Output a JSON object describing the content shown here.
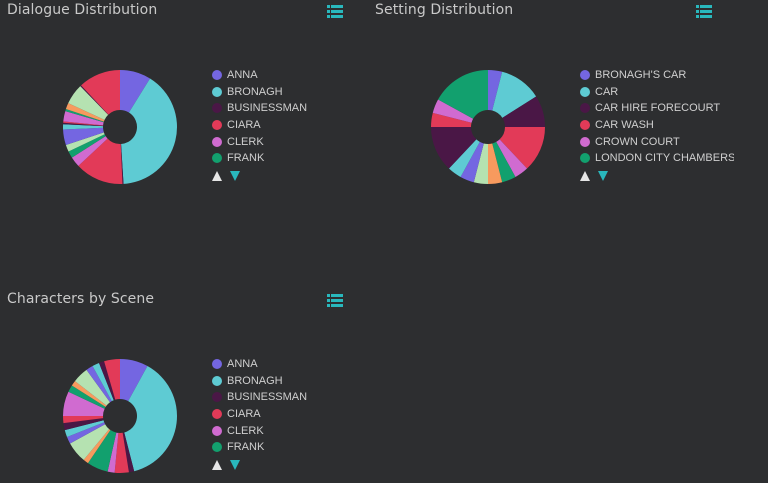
{
  "colors": {
    "background": "#2d2e30",
    "accent": "#29b8bd",
    "title": "#c9c9c9",
    "legend_text": "#cfcfcf",
    "nav_up": "#e6e6e6",
    "nav_down": "#29b8bd"
  },
  "palette": [
    "#7466e1",
    "#5ecbd3",
    "#4a1746",
    "#e23a58",
    "#d06bd0",
    "#12a06e",
    "#f79a5e",
    "#b5e2b1"
  ],
  "panels": [
    {
      "title": "Dialogue Distribution",
      "menu_icon": "list-menu-icon",
      "legend": [
        "ANNA",
        "BRONAGH",
        "BUSINESSMAN",
        "CIARA",
        "CLERK",
        "FRANK"
      ],
      "nav": {
        "up": "legend-prev",
        "down": "legend-next"
      }
    },
    {
      "title": "Setting Distribution",
      "menu_icon": "list-menu-icon",
      "legend": [
        "BRONAGH'S CAR",
        "CAR",
        "CAR HIRE FORECOURT",
        "CAR WASH",
        "CROWN COURT",
        "LONDON CITY CHAMBERS"
      ],
      "nav": {
        "up": "legend-prev",
        "down": "legend-next"
      }
    },
    {
      "title": "Characters by Scene",
      "menu_icon": "list-menu-icon",
      "legend": [
        "ANNA",
        "BRONAGH",
        "BUSINESSMAN",
        "CIARA",
        "CLERK",
        "FRANK"
      ],
      "nav": {
        "up": "legend-prev",
        "down": "legend-next"
      }
    }
  ],
  "chart_data": [
    {
      "type": "pie",
      "title": "Dialogue Distribution",
      "donut": true,
      "legend_position": "right",
      "legend_visible": [
        "ANNA",
        "BRONAGH",
        "BUSINESSMAN",
        "CIARA",
        "CLERK",
        "FRANK"
      ],
      "slices": [
        {
          "label": "ANNA",
          "value": 9,
          "color": "#7466e1"
        },
        {
          "label": "BRONAGH",
          "value": 41,
          "color": "#5ecbd3"
        },
        {
          "label": "BUSINESSMAN",
          "value": 0.3,
          "color": "#4a1746"
        },
        {
          "label": "CIARA",
          "value": 14,
          "color": "#e23a58"
        },
        {
          "label": "CLERK",
          "value": 3,
          "color": "#d06bd0"
        },
        {
          "label": "FRANK",
          "value": 2,
          "color": "#12a06e"
        },
        {
          "label": "(unlabeled 7)",
          "value": 2,
          "color": "#b5e2b1"
        },
        {
          "label": "(unlabeled 8)",
          "value": 4.5,
          "color": "#7466e1"
        },
        {
          "label": "(unlabeled 9)",
          "value": 1.5,
          "color": "#5ecbd3"
        },
        {
          "label": "(unlabeled 10)",
          "value": 0.4,
          "color": "#4a1746"
        },
        {
          "label": "(unlabeled 11)",
          "value": 0.4,
          "color": "#e23a58"
        },
        {
          "label": "(unlabeled 12)",
          "value": 3,
          "color": "#d06bd0"
        },
        {
          "label": "(unlabeled 13)",
          "value": 0.6,
          "color": "#12a06e"
        },
        {
          "label": "(unlabeled 14)",
          "value": 1.8,
          "color": "#f79a5e"
        },
        {
          "label": "(unlabeled 15)",
          "value": 6,
          "color": "#b5e2b1"
        },
        {
          "label": "(unlabeled 16)",
          "value": 0.3,
          "color": "#4a1746"
        },
        {
          "label": "(unlabeled 17)",
          "value": 12.2,
          "color": "#e23a58"
        }
      ]
    },
    {
      "type": "pie",
      "title": "Setting Distribution",
      "donut": true,
      "legend_position": "right",
      "legend_visible": [
        "BRONAGH'S CAR",
        "CAR",
        "CAR HIRE FORECOURT",
        "CAR WASH",
        "CROWN COURT",
        "LONDON CITY CHAMBERS"
      ],
      "slices": [
        {
          "label": "BRONAGH'S CAR",
          "value": 4,
          "color": "#7466e1"
        },
        {
          "label": "CAR",
          "value": 12,
          "color": "#5ecbd3"
        },
        {
          "label": "CAR HIRE FORECOURT",
          "value": 9,
          "color": "#4a1746"
        },
        {
          "label": "CAR WASH",
          "value": 13,
          "color": "#e23a58"
        },
        {
          "label": "CROWN COURT",
          "value": 4,
          "color": "#d06bd0"
        },
        {
          "label": "LONDON CITY CHAMBERS",
          "value": 4,
          "color": "#12a06e"
        },
        {
          "label": "(unlabeled 7)",
          "value": 4,
          "color": "#f79a5e"
        },
        {
          "label": "(unlabeled 8)",
          "value": 4,
          "color": "#b5e2b1"
        },
        {
          "label": "(unlabeled 9)",
          "value": 4,
          "color": "#7466e1"
        },
        {
          "label": "(unlabeled 10)",
          "value": 4,
          "color": "#5ecbd3"
        },
        {
          "label": "(unlabeled 11)",
          "value": 13,
          "color": "#4a1746"
        },
        {
          "label": "(unlabeled 12)",
          "value": 4,
          "color": "#e23a58"
        },
        {
          "label": "(unlabeled 13)",
          "value": 4,
          "color": "#d06bd0"
        },
        {
          "label": "(unlabeled 14)",
          "value": 17,
          "color": "#12a06e"
        }
      ]
    },
    {
      "type": "pie",
      "title": "Characters by Scene",
      "donut": true,
      "legend_position": "right",
      "legend_visible": [
        "ANNA",
        "BRONAGH",
        "BUSINESSMAN",
        "CIARA",
        "CLERK",
        "FRANK"
      ],
      "slices": [
        {
          "label": "ANNA",
          "value": 8,
          "color": "#7466e1"
        },
        {
          "label": "BRONAGH",
          "value": 38,
          "color": "#5ecbd3"
        },
        {
          "label": "BUSINESSMAN",
          "value": 1.5,
          "color": "#4a1746"
        },
        {
          "label": "CIARA",
          "value": 4,
          "color": "#e23a58"
        },
        {
          "label": "CLERK",
          "value": 2,
          "color": "#d06bd0"
        },
        {
          "label": "FRANK",
          "value": 6,
          "color": "#12a06e"
        },
        {
          "label": "(unlabeled 7)",
          "value": 1.5,
          "color": "#f79a5e"
        },
        {
          "label": "(unlabeled 8)",
          "value": 6,
          "color": "#b5e2b1"
        },
        {
          "label": "(unlabeled 9)",
          "value": 2,
          "color": "#7466e1"
        },
        {
          "label": "(unlabeled 10)",
          "value": 2,
          "color": "#5ecbd3"
        },
        {
          "label": "(unlabeled 11)",
          "value": 2,
          "color": "#4a1746"
        },
        {
          "label": "(unlabeled 12)",
          "value": 2,
          "color": "#e23a58"
        },
        {
          "label": "(unlabeled 13)",
          "value": 7,
          "color": "#d06bd0"
        },
        {
          "label": "(unlabeled 14)",
          "value": 2,
          "color": "#12a06e"
        },
        {
          "label": "(unlabeled 15)",
          "value": 1.5,
          "color": "#f79a5e"
        },
        {
          "label": "(unlabeled 16)",
          "value": 4.5,
          "color": "#b5e2b1"
        },
        {
          "label": "(unlabeled 17)",
          "value": 2,
          "color": "#7466e1"
        },
        {
          "label": "(unlabeled 18)",
          "value": 2,
          "color": "#5ecbd3"
        },
        {
          "label": "(unlabeled 19)",
          "value": 1.5,
          "color": "#4a1746"
        },
        {
          "label": "(unlabeled 20)",
          "value": 4.5,
          "color": "#e23a58"
        }
      ]
    }
  ]
}
